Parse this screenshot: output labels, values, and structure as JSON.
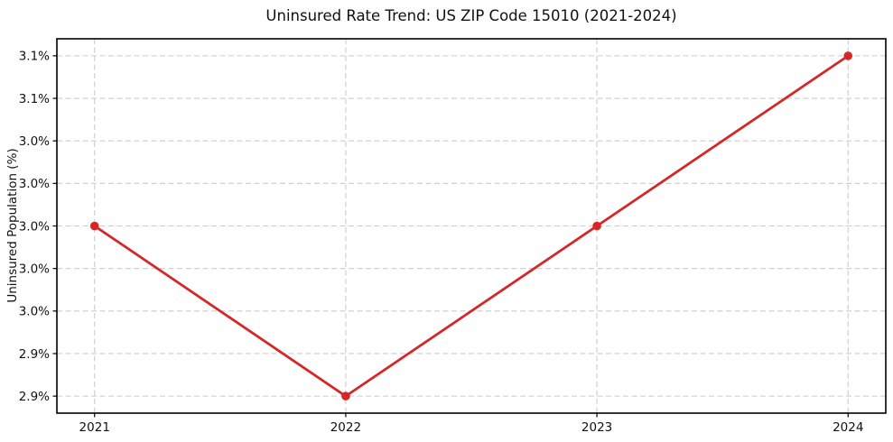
{
  "chart_data": {
    "type": "line",
    "title": "Uninsured Rate Trend: US ZIP Code 15010 (2021-2024)",
    "xlabel": "",
    "ylabel": "Uninsured Population (%)",
    "x": [
      2021,
      2022,
      2023,
      2024
    ],
    "values": [
      3.0,
      2.9,
      3.0,
      3.1
    ],
    "xlim": [
      2020.85,
      2024.15
    ],
    "ylim": [
      2.89,
      3.11
    ],
    "xticks": {
      "values": [
        2021,
        2022,
        2023,
        2024
      ],
      "labels": [
        "2021",
        "2022",
        "2023",
        "2024"
      ]
    },
    "yticks": {
      "values": [
        2.9,
        2.925,
        2.95,
        2.975,
        3.0,
        3.025,
        3.05,
        3.075,
        3.1
      ],
      "labels": [
        "2.9%",
        "2.9%",
        "3.0%",
        "3.0%",
        "3.0%",
        "3.0%",
        "3.0%",
        "3.1%",
        "3.1%"
      ]
    },
    "grid": true,
    "grid_linestyle": "dashed",
    "legend_position": "none",
    "style": {
      "line_color": "#d62728",
      "line_width": 2.8,
      "marker": "circle",
      "marker_radius": 4.8,
      "grid_color": "#cccccc",
      "spine_color": "#000000",
      "tick_color": "#000000",
      "text_color": "#111111",
      "background": "#ffffff"
    }
  }
}
